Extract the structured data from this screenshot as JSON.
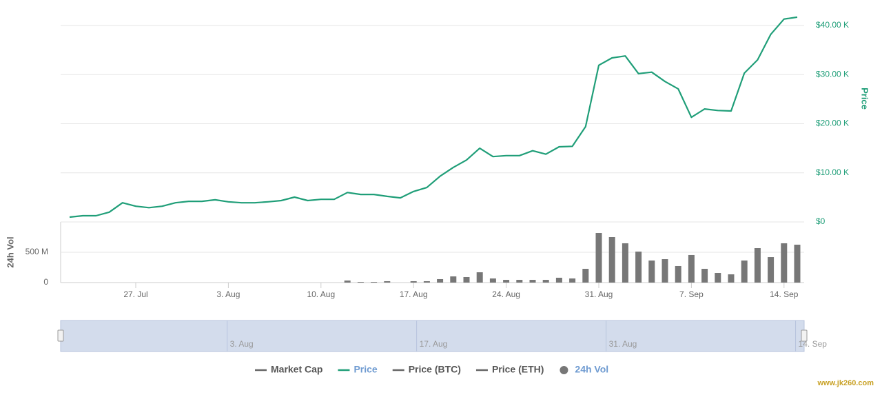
{
  "chart_data": {
    "type": "combo",
    "categories": [
      null,
      null,
      null,
      null,
      null,
      "27. Jul",
      null,
      null,
      null,
      null,
      null,
      null,
      "3. Aug",
      null,
      null,
      null,
      null,
      null,
      null,
      "10. Aug",
      null,
      null,
      null,
      null,
      null,
      null,
      "17. Aug",
      null,
      null,
      null,
      null,
      null,
      null,
      "24. Aug",
      null,
      null,
      null,
      null,
      null,
      null,
      "31. Aug",
      null,
      null,
      null,
      null,
      null,
      null,
      "7. Sep",
      null,
      null,
      null,
      null,
      null,
      null,
      "14. Sep",
      null
    ],
    "series": [
      {
        "name": "Price",
        "type": "line",
        "color": "#1f9e78",
        "values": [
          0.98,
          1.26,
          1.26,
          2.0,
          3.9,
          3.2,
          2.9,
          3.2,
          3.9,
          4.2,
          4.2,
          4.5,
          4.1,
          3.9,
          3.9,
          4.1,
          4.35,
          5.05,
          4.35,
          4.6,
          4.6,
          6.0,
          5.6,
          5.6,
          5.2,
          4.9,
          6.2,
          7.0,
          9.3,
          11.1,
          12.6,
          15.0,
          13.3,
          13.5,
          13.5,
          14.5,
          13.8,
          15.3,
          15.4,
          19.4,
          31.9,
          33.4,
          33.8,
          30.2,
          30.5,
          28.6,
          27.1,
          21.3,
          23.0,
          22.7,
          22.6,
          30.3,
          33.0,
          38.2,
          41.3,
          41.7
        ]
      },
      {
        "name": "24h Vol",
        "type": "bar",
        "axis": "y2",
        "color": "#777777",
        "values": [
          0,
          0,
          0,
          0,
          0,
          0,
          0,
          0,
          0,
          0,
          0,
          0,
          0,
          0,
          0,
          0,
          0,
          0,
          0,
          0,
          0,
          34,
          11,
          11,
          23,
          0,
          23,
          23,
          57,
          102,
          91,
          170,
          68,
          45,
          45,
          45,
          45,
          80,
          68,
          227,
          818,
          750,
          648,
          511,
          364,
          386,
          273,
          455,
          227,
          159,
          136,
          364,
          568,
          420,
          648,
          625
        ]
      }
    ],
    "ylabel": "Price",
    "ylim": [
      0,
      40
    ],
    "yticks": [
      {
        "value": 0,
        "label": "$0"
      },
      {
        "value": 10,
        "label": "$10.00 K"
      },
      {
        "value": 20,
        "label": "$20.00 K"
      },
      {
        "value": 30,
        "label": "$30.00 K"
      },
      {
        "value": 40,
        "label": "$40.00 K"
      }
    ],
    "y2label": "24h Vol",
    "y2lim": [
      0,
      1000
    ],
    "y2ticks": [
      0,
      {
        "value": 500,
        "label": "500 M"
      }
    ],
    "grid": true,
    "navigator": {
      "labels": [
        "3. Aug",
        "17. Aug",
        "31. Aug",
        "14. Sep"
      ],
      "color": "#d3dcec"
    },
    "legend": [
      {
        "name": "Market Cap",
        "symbol": "line",
        "color": "#666666",
        "text_color": "#555555"
      },
      {
        "name": "Price",
        "symbol": "line",
        "color": "#1f9e78",
        "text_color": "#6f9bd1"
      },
      {
        "name": "Price (BTC)",
        "symbol": "line",
        "color": "#666666",
        "text_color": "#555555"
      },
      {
        "name": "Price (ETH)",
        "symbol": "line",
        "color": "#666666",
        "text_color": "#555555"
      },
      {
        "name": "24h Vol",
        "symbol": "circle",
        "color": "#777777",
        "text_color": "#6f9bd1"
      }
    ],
    "watermark": "www.jk260.com"
  }
}
